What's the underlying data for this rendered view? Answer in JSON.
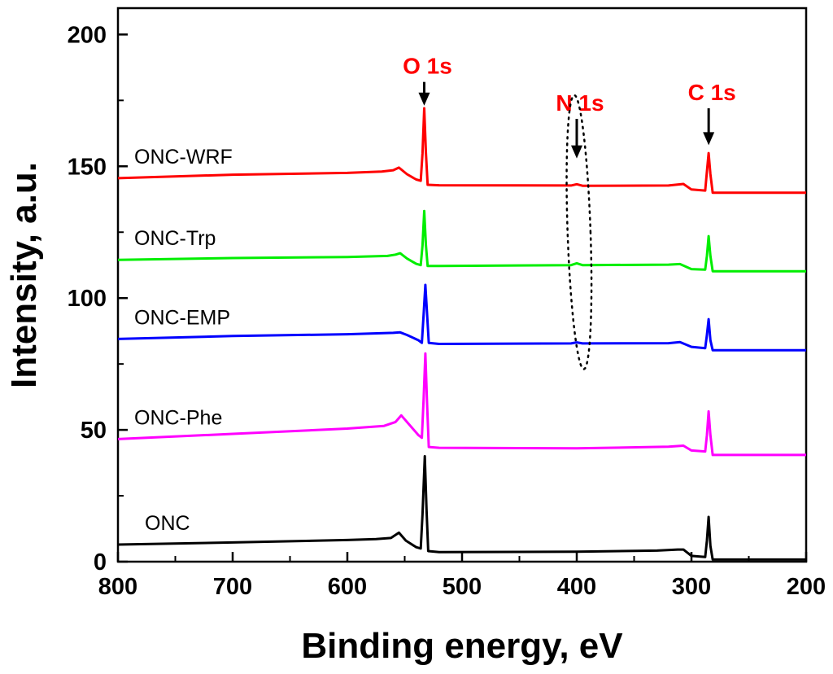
{
  "chart_data": {
    "type": "line",
    "title": "",
    "xlabel": "Binding energy, eV",
    "ylabel": "Intensity, a.u.",
    "xlim": [
      800,
      200
    ],
    "ylim": [
      0,
      210
    ],
    "x_ticks": [
      800,
      700,
      600,
      500,
      400,
      300,
      200
    ],
    "y_ticks": [
      0,
      50,
      100,
      150,
      200
    ],
    "series": [
      {
        "name": "ONC",
        "color": "#000000",
        "points": [
          [
            800,
            6.5
          ],
          [
            700,
            7.3
          ],
          [
            600,
            8.2
          ],
          [
            575,
            8.6
          ],
          [
            562,
            9
          ],
          [
            555,
            11
          ],
          [
            549,
            8
          ],
          [
            540,
            5.5
          ],
          [
            536,
            5
          ],
          [
            534.5,
            18
          ],
          [
            532.5,
            40
          ],
          [
            531,
            20
          ],
          [
            529.5,
            4
          ],
          [
            520,
            3.6
          ],
          [
            400,
            3.8
          ],
          [
            330,
            4.2
          ],
          [
            312,
            4.6
          ],
          [
            307,
            4.6
          ],
          [
            300,
            2.2
          ],
          [
            288,
            1.8
          ],
          [
            286.5,
            8
          ],
          [
            285,
            17
          ],
          [
            283.5,
            6
          ],
          [
            281.5,
            0.8
          ],
          [
            200,
            0.8
          ]
        ]
      },
      {
        "name": "ONC-Phe",
        "color": "#ff00ff",
        "points": [
          [
            800,
            46.5
          ],
          [
            700,
            48.5
          ],
          [
            600,
            50.5
          ],
          [
            568,
            51.5
          ],
          [
            558,
            53
          ],
          [
            553,
            55.5
          ],
          [
            546,
            52
          ],
          [
            538,
            48
          ],
          [
            535,
            47
          ],
          [
            533.5,
            62
          ],
          [
            532,
            79
          ],
          [
            530.5,
            60
          ],
          [
            529,
            43.5
          ],
          [
            520,
            43.2
          ],
          [
            400,
            43
          ],
          [
            320,
            43.6
          ],
          [
            307,
            44
          ],
          [
            300,
            42.2
          ],
          [
            288,
            41.8
          ],
          [
            286.5,
            48
          ],
          [
            285,
            57
          ],
          [
            283.5,
            48
          ],
          [
            281.5,
            40.5
          ],
          [
            200,
            40.5
          ]
        ]
      },
      {
        "name": "ONC-EMP",
        "color": "#0000ff",
        "points": [
          [
            800,
            84.5
          ],
          [
            700,
            85.6
          ],
          [
            600,
            86.3
          ],
          [
            560,
            86.8
          ],
          [
            554,
            87
          ],
          [
            548,
            86
          ],
          [
            538,
            84
          ],
          [
            535,
            83
          ],
          [
            533.5,
            94
          ],
          [
            532,
            105
          ],
          [
            530.5,
            94
          ],
          [
            529,
            83
          ],
          [
            520,
            82.6
          ],
          [
            405,
            82.8
          ],
          [
            400,
            83.2
          ],
          [
            395,
            82.8
          ],
          [
            320,
            82.9
          ],
          [
            310,
            83.3
          ],
          [
            300,
            81.5
          ],
          [
            288,
            81
          ],
          [
            286.5,
            86
          ],
          [
            285,
            92
          ],
          [
            283.5,
            84
          ],
          [
            281.5,
            80.2
          ],
          [
            200,
            80.2
          ]
        ]
      },
      {
        "name": "ONC-Trp",
        "color": "#00ee00",
        "points": [
          [
            800,
            114.5
          ],
          [
            700,
            115.2
          ],
          [
            600,
            115.6
          ],
          [
            565,
            116
          ],
          [
            558,
            116.5
          ],
          [
            554,
            117
          ],
          [
            548,
            115
          ],
          [
            540,
            113
          ],
          [
            536,
            112.5
          ],
          [
            534.5,
            120
          ],
          [
            533,
            133
          ],
          [
            531.5,
            120
          ],
          [
            530,
            112.2
          ],
          [
            520,
            112.2
          ],
          [
            405,
            112.5
          ],
          [
            400,
            113.2
          ],
          [
            395,
            112.5
          ],
          [
            320,
            112.7
          ],
          [
            310,
            112.9
          ],
          [
            300,
            111
          ],
          [
            288,
            110.8
          ],
          [
            286.5,
            116
          ],
          [
            285,
            123.5
          ],
          [
            283.5,
            116
          ],
          [
            281.5,
            110.2
          ],
          [
            200,
            110.2
          ]
        ]
      },
      {
        "name": "ONC-WRF",
        "color": "#ff0000",
        "points": [
          [
            800,
            145.5
          ],
          [
            700,
            146.8
          ],
          [
            600,
            147.5
          ],
          [
            570,
            148
          ],
          [
            560,
            148.5
          ],
          [
            555,
            149.5
          ],
          [
            548,
            147
          ],
          [
            540,
            145
          ],
          [
            536,
            144.5
          ],
          [
            534.5,
            155
          ],
          [
            533,
            172
          ],
          [
            531.5,
            155
          ],
          [
            530,
            143
          ],
          [
            520,
            142.8
          ],
          [
            405,
            142.7
          ],
          [
            400,
            143.2
          ],
          [
            395,
            142.6
          ],
          [
            320,
            142.7
          ],
          [
            307,
            143.3
          ],
          [
            300,
            141.2
          ],
          [
            288,
            140.8
          ],
          [
            286.5,
            148
          ],
          [
            285,
            155
          ],
          [
            283.5,
            147
          ],
          [
            281.5,
            140
          ],
          [
            200,
            140
          ]
        ]
      }
    ],
    "annotations": [
      {
        "text": "O 1s",
        "x": 533,
        "arrow_top_y": 182,
        "arrow_tip_y": 173,
        "color": "#ff0000"
      },
      {
        "text": "N 1s",
        "x": 400,
        "arrow_top_y": 168,
        "arrow_tip_y": 153,
        "color": "#ff0000"
      },
      {
        "text": "C 1s",
        "x": 285,
        "arrow_top_y": 172,
        "arrow_tip_y": 158,
        "color": "#ff0000"
      }
    ],
    "highlight_ellipse": {
      "x_center": 398,
      "y_center": 125,
      "x_half_width": 10,
      "y_half_height": 52,
      "style": "dotted"
    }
  }
}
